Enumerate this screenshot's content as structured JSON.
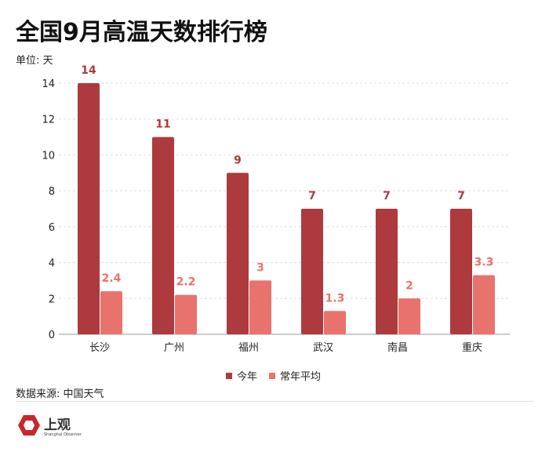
{
  "chart_data": {
    "type": "bar",
    "title": "全国9月高温天数排行榜",
    "ylabel": "单位: 天",
    "xlabel": "",
    "categories": [
      "长沙",
      "广州",
      "福州",
      "武汉",
      "南昌",
      "重庆"
    ],
    "series": [
      {
        "name": "今年",
        "color": "#ad3a3c",
        "label_color": "#ad3a3c",
        "values": [
          14,
          11,
          9,
          7,
          7,
          7
        ]
      },
      {
        "name": "常年平均",
        "color": "#e8736c",
        "label_color": "#e8736c",
        "values": [
          2.4,
          2.2,
          3,
          1.3,
          2,
          3.3
        ]
      }
    ],
    "ylim": [
      0,
      14
    ],
    "yticks": [
      0,
      2,
      4,
      6,
      8,
      10,
      12,
      14
    ],
    "grid": true,
    "legend": "bottom-center"
  },
  "footer": {
    "source": "数据来源: 中国天气",
    "logo_text": "上观",
    "logo_sub": "Shanghai Observer"
  }
}
